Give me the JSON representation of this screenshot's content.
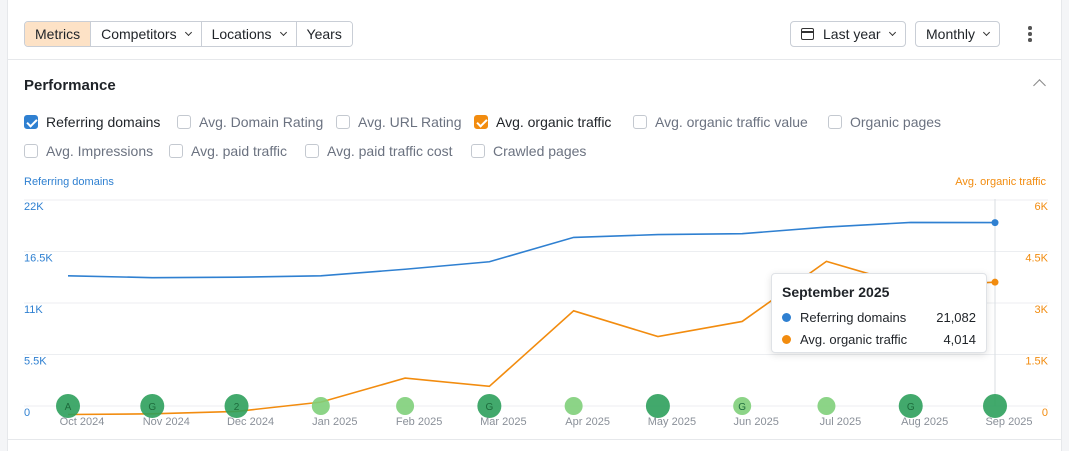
{
  "toolbar": {
    "tabs": [
      {
        "label": "Metrics",
        "active": true,
        "dropdown": false
      },
      {
        "label": "Competitors",
        "active": false,
        "dropdown": true
      },
      {
        "label": "Locations",
        "active": false,
        "dropdown": true
      },
      {
        "label": "Years",
        "active": false,
        "dropdown": false
      }
    ],
    "date_range": "Last year",
    "interval": "Monthly",
    "more_icon": "kebab-icon"
  },
  "section": {
    "title": "Performance",
    "collapse_icon": "chevron-up-icon"
  },
  "metrics": [
    {
      "label": "Referring domains",
      "checked": true,
      "color": "#2f80d1"
    },
    {
      "label": "Avg. Domain Rating",
      "checked": false
    },
    {
      "label": "Avg. URL Rating",
      "checked": false
    },
    {
      "label": "Avg. organic traffic",
      "checked": true,
      "color": "#f28c0f"
    },
    {
      "label": "Avg. organic traffic value",
      "checked": false
    },
    {
      "label": "Organic pages",
      "checked": false
    },
    {
      "label": "Avg. Impressions",
      "checked": false
    },
    {
      "label": "Avg. paid traffic",
      "checked": false
    },
    {
      "label": "Avg. paid traffic cost",
      "checked": false
    },
    {
      "label": "Crawled pages",
      "checked": false
    }
  ],
  "chart_data": {
    "type": "line",
    "x": [
      "Oct 2024",
      "Nov 2024",
      "Dec 2024",
      "Jan 2025",
      "Feb 2025",
      "Mar 2025",
      "Apr 2025",
      "May 2025",
      "Jun 2025",
      "Jul 2025",
      "Aug 2025",
      "Sep 2025"
    ],
    "y_left_label": "Referring domains",
    "y_right_label": "Avg. organic traffic",
    "y_left_ticks": [
      "0",
      "5.5K",
      "11K",
      "16.5K",
      "22K"
    ],
    "y_right_ticks": [
      "0",
      "1.5K",
      "3K",
      "4.5K",
      "6K"
    ],
    "y_left_range": [
      0,
      22000
    ],
    "y_right_range": [
      0,
      6000
    ],
    "grid": true,
    "series": [
      {
        "name": "Referring domains",
        "axis": "left",
        "color": "#2f80d1",
        "values": [
          15400,
          15200,
          15250,
          15400,
          16100,
          16900,
          19500,
          19800,
          19900,
          20600,
          21100,
          21082
        ]
      },
      {
        "name": "Avg. organic traffic",
        "axis": "right",
        "color": "#f28c0f",
        "values": [
          160,
          180,
          250,
          520,
          1220,
          980,
          3180,
          2430,
          2870,
          4620,
          3900,
          4014
        ]
      }
    ],
    "annotations": [
      {
        "month": "Oct 2024",
        "label": "A",
        "size": "large",
        "color": "#2ea05c"
      },
      {
        "month": "Nov 2024",
        "label": "G",
        "size": "large",
        "color": "#2ea05c"
      },
      {
        "month": "Dec 2024",
        "label": "2",
        "size": "large",
        "color": "#2ea05c"
      },
      {
        "month": "Jan 2025",
        "label": "",
        "size": "small",
        "color": "#7fcf7a"
      },
      {
        "month": "Feb 2025",
        "label": "",
        "size": "small",
        "color": "#7fcf7a"
      },
      {
        "month": "Mar 2025",
        "label": "G",
        "size": "large",
        "color": "#2ea05c"
      },
      {
        "month": "Apr 2025",
        "label": "",
        "size": "small",
        "color": "#7fcf7a"
      },
      {
        "month": "May 2025",
        "label": "",
        "size": "large",
        "color": "#2ea05c"
      },
      {
        "month": "Jun 2025",
        "label": "G",
        "size": "small",
        "color": "#7fcf7a"
      },
      {
        "month": "Jul 2025",
        "label": "",
        "size": "small",
        "color": "#7fcf7a"
      },
      {
        "month": "Aug 2025",
        "label": "G",
        "size": "large",
        "color": "#2ea05c"
      },
      {
        "month": "Sep 2025",
        "label": "",
        "size": "large",
        "color": "#2ea05c"
      }
    ],
    "tooltip": {
      "title": "September 2025",
      "rows": [
        {
          "name": "Referring domains",
          "value": "21,082",
          "color": "#2f80d1"
        },
        {
          "name": "Avg. organic traffic",
          "value": "4,014",
          "color": "#f28c0f"
        }
      ]
    }
  }
}
